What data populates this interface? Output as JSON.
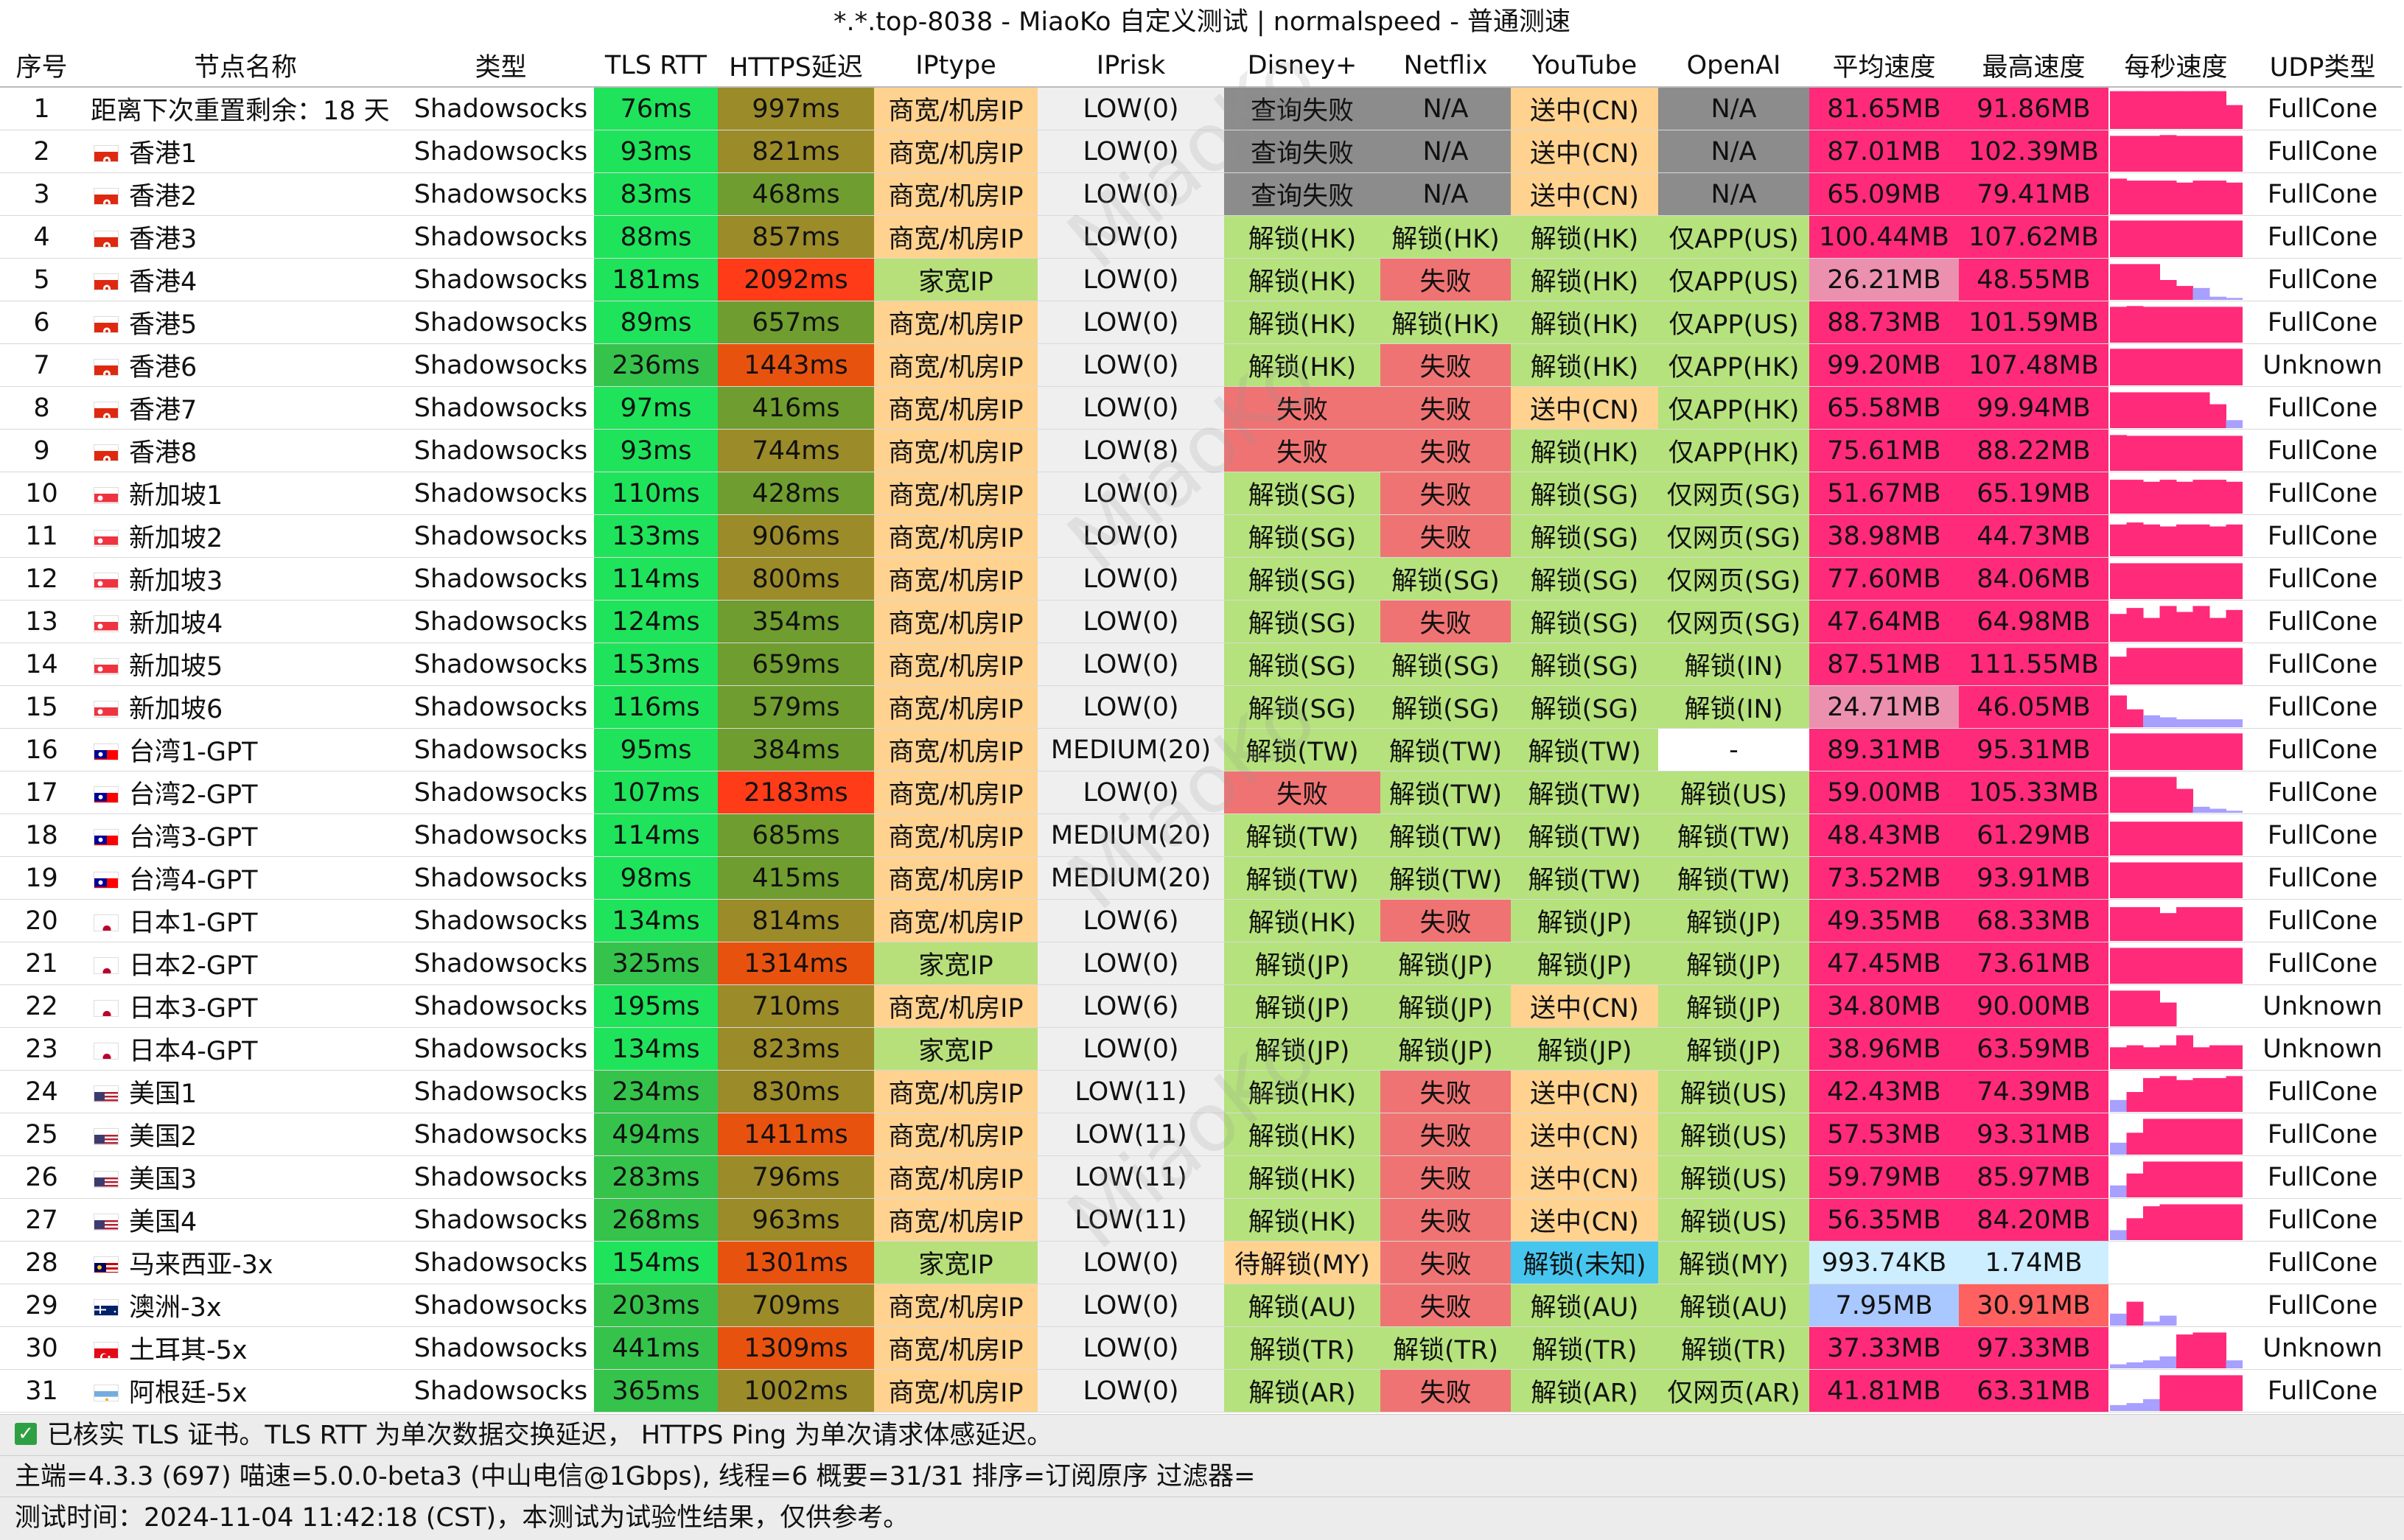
{
  "title": "*.*.top-8038 - MiaoKo 自定义测试 | normalspeed - 普通测速",
  "watermark": "MiaoKo",
  "headers": [
    "序号",
    "节点名称",
    "类型",
    "TLS RTT",
    "HTTPS延迟",
    "IPtype",
    "IPrisk",
    "Disney+",
    "Netflix",
    "YouTube",
    "OpenAI",
    "平均速度",
    "最高速度",
    "每秒速度",
    "UDP类型"
  ],
  "colors": {
    "rtt_green": "#1fe35a",
    "rtt_mid": "#35c34b",
    "https_olive": "#9b8b29",
    "https_mid": "#6f9d2f",
    "https_red": "#ff3b18",
    "https_orange": "#e8520f",
    "iptype_dc": "#ffd28f",
    "iptype_home": "#b8e07a",
    "iprisk_bg": "#efefef",
    "unlock": "#b5e27c",
    "fail": "#f07373",
    "query_fail": "#8c8c8c",
    "sent_cn": "#ffd28f",
    "waiting": "#ffd28f",
    "unknown_unlock": "#46c6ef",
    "speed_pink": "#ff2a79",
    "speed_light_pink": "#ec90b0",
    "speed_light_blue": "#cdeeff",
    "speed_blue": "#a9c8ff",
    "speed_red": "#ff6060",
    "spark_pink": "#ff2a79",
    "spark_blue": "#a7a0ff",
    "blank": "#ffffff"
  },
  "rows": [
    {
      "no": "1",
      "flag": "",
      "name": "距离下次重置剩余：18 天",
      "type": "Shadowsocks",
      "rtt": "76ms",
      "https": "997ms",
      "iptype": "商宽/机房IP",
      "iprisk": "LOW(0)",
      "disney": "查询失败",
      "netflix": "N/A",
      "youtube": "送中(CN)",
      "openai": "N/A",
      "avg": "81.65MB",
      "max": "91.86MB",
      "udp": "FullCone",
      "spark": [
        0.95,
        0.95,
        0.95,
        0.95,
        0.95,
        0.95,
        0.95,
        0.6
      ]
    },
    {
      "no": "2",
      "flag": "hk",
      "name": "香港1",
      "type": "Shadowsocks",
      "rtt": "93ms",
      "https": "821ms",
      "iptype": "商宽/机房IP",
      "iprisk": "LOW(0)",
      "disney": "查询失败",
      "netflix": "N/A",
      "youtube": "送中(CN)",
      "openai": "N/A",
      "avg": "87.01MB",
      "max": "102.39MB",
      "udp": "FullCone",
      "spark": [
        0.9,
        0.9,
        0.9,
        0.92,
        0.9,
        0.9,
        0.9,
        0.9
      ]
    },
    {
      "no": "3",
      "flag": "hk",
      "name": "香港2",
      "type": "Shadowsocks",
      "rtt": "83ms",
      "https": "468ms",
      "iptype": "商宽/机房IP",
      "iprisk": "LOW(0)",
      "disney": "查询失败",
      "netflix": "N/A",
      "youtube": "送中(CN)",
      "openai": "N/A",
      "avg": "65.09MB",
      "max": "79.41MB",
      "udp": "FullCone",
      "spark": [
        0.9,
        0.85,
        0.85,
        0.85,
        0.8,
        0.85,
        0.85,
        0.8
      ]
    },
    {
      "no": "4",
      "flag": "hk",
      "name": "香港3",
      "type": "Shadowsocks",
      "rtt": "88ms",
      "https": "857ms",
      "iptype": "商宽/机房IP",
      "iprisk": "LOW(0)",
      "disney": "解锁(HK)",
      "netflix": "解锁(HK)",
      "youtube": "解锁(HK)",
      "openai": "仅APP(US)",
      "avg": "100.44MB",
      "max": "107.62MB",
      "udp": "FullCone",
      "spark": [
        0.92,
        0.92,
        0.92,
        0.92,
        0.92,
        0.92,
        0.92,
        0.92
      ]
    },
    {
      "no": "5",
      "flag": "hk",
      "name": "香港4",
      "type": "Shadowsocks",
      "rtt": "181ms",
      "https": "2092ms",
      "iptype": "家宽IP",
      "iprisk": "LOW(0)",
      "disney": "解锁(HK)",
      "netflix": "失败",
      "youtube": "解锁(HK)",
      "openai": "仅APP(US)",
      "avg": "26.21MB",
      "max": "48.55MB",
      "udp": "FullCone",
      "spark": [
        0.9,
        0.9,
        0.9,
        0.5,
        0.35,
        0.3,
        0.08,
        0.05
      ]
    },
    {
      "no": "6",
      "flag": "hk",
      "name": "香港5",
      "type": "Shadowsocks",
      "rtt": "89ms",
      "https": "657ms",
      "iptype": "商宽/机房IP",
      "iprisk": "LOW(0)",
      "disney": "解锁(HK)",
      "netflix": "解锁(HK)",
      "youtube": "解锁(HK)",
      "openai": "仅APP(US)",
      "avg": "88.73MB",
      "max": "101.59MB",
      "udp": "FullCone",
      "spark": [
        0.9,
        0.92,
        0.9,
        0.9,
        0.9,
        0.9,
        0.9,
        0.9
      ]
    },
    {
      "no": "7",
      "flag": "hk",
      "name": "香港6",
      "type": "Shadowsocks",
      "rtt": "236ms",
      "https": "1443ms",
      "iptype": "商宽/机房IP",
      "iprisk": "LOW(0)",
      "disney": "解锁(HK)",
      "netflix": "失败",
      "youtube": "解锁(HK)",
      "openai": "仅APP(HK)",
      "avg": "99.20MB",
      "max": "107.48MB",
      "udp": "Unknown",
      "spark": [
        0.92,
        0.92,
        0.92,
        0.92,
        0.92,
        0.92,
        0.92,
        0.92
      ]
    },
    {
      "no": "8",
      "flag": "hk",
      "name": "香港7",
      "type": "Shadowsocks",
      "rtt": "97ms",
      "https": "416ms",
      "iptype": "商宽/机房IP",
      "iprisk": "LOW(0)",
      "disney": "失败",
      "netflix": "失败",
      "youtube": "送中(CN)",
      "openai": "仅APP(HK)",
      "avg": "65.58MB",
      "max": "99.94MB",
      "udp": "FullCone",
      "spark": [
        0.9,
        0.9,
        0.9,
        0.9,
        0.9,
        0.9,
        0.6,
        0.2
      ]
    },
    {
      "no": "9",
      "flag": "hk",
      "name": "香港8",
      "type": "Shadowsocks",
      "rtt": "93ms",
      "https": "744ms",
      "iptype": "商宽/机房IP",
      "iprisk": "LOW(8)",
      "disney": "失败",
      "netflix": "失败",
      "youtube": "解锁(HK)",
      "openai": "仅APP(HK)",
      "avg": "75.61MB",
      "max": "88.22MB",
      "udp": "FullCone",
      "spark": [
        0.9,
        0.88,
        0.88,
        0.88,
        0.88,
        0.88,
        0.88,
        0.88
      ]
    },
    {
      "no": "10",
      "flag": "sg",
      "name": "新加坡1",
      "type": "Shadowsocks",
      "rtt": "110ms",
      "https": "428ms",
      "iptype": "商宽/机房IP",
      "iprisk": "LOW(0)",
      "disney": "解锁(SG)",
      "netflix": "失败",
      "youtube": "解锁(SG)",
      "openai": "仅网页(SG)",
      "avg": "51.67MB",
      "max": "65.19MB",
      "udp": "FullCone",
      "spark": [
        0.85,
        0.85,
        0.8,
        0.85,
        0.8,
        0.85,
        0.85,
        0.8
      ]
    },
    {
      "no": "11",
      "flag": "sg",
      "name": "新加坡2",
      "type": "Shadowsocks",
      "rtt": "133ms",
      "https": "906ms",
      "iptype": "商宽/机房IP",
      "iprisk": "LOW(0)",
      "disney": "解锁(SG)",
      "netflix": "失败",
      "youtube": "解锁(SG)",
      "openai": "仅网页(SG)",
      "avg": "38.98MB",
      "max": "44.73MB",
      "udp": "FullCone",
      "spark": [
        0.8,
        0.85,
        0.8,
        0.75,
        0.8,
        0.8,
        0.75,
        0.8
      ]
    },
    {
      "no": "12",
      "flag": "sg",
      "name": "新加坡3",
      "type": "Shadowsocks",
      "rtt": "114ms",
      "https": "800ms",
      "iptype": "商宽/机房IP",
      "iprisk": "LOW(0)",
      "disney": "解锁(SG)",
      "netflix": "解锁(SG)",
      "youtube": "解锁(SG)",
      "openai": "仅网页(SG)",
      "avg": "77.60MB",
      "max": "84.06MB",
      "udp": "FullCone",
      "spark": [
        0.9,
        0.9,
        0.9,
        0.9,
        0.9,
        0.9,
        0.9,
        0.9
      ]
    },
    {
      "no": "13",
      "flag": "sg",
      "name": "新加坡4",
      "type": "Shadowsocks",
      "rtt": "124ms",
      "https": "354ms",
      "iptype": "商宽/机房IP",
      "iprisk": "LOW(0)",
      "disney": "解锁(SG)",
      "netflix": "失败",
      "youtube": "解锁(SG)",
      "openai": "仅网页(SG)",
      "avg": "47.64MB",
      "max": "64.98MB",
      "udp": "FullCone",
      "spark": [
        0.7,
        0.85,
        0.6,
        0.9,
        0.75,
        0.9,
        0.6,
        0.8
      ]
    },
    {
      "no": "14",
      "flag": "sg",
      "name": "新加坡5",
      "type": "Shadowsocks",
      "rtt": "153ms",
      "https": "659ms",
      "iptype": "商宽/机房IP",
      "iprisk": "LOW(0)",
      "disney": "解锁(SG)",
      "netflix": "解锁(SG)",
      "youtube": "解锁(SG)",
      "openai": "解锁(IN)",
      "avg": "87.51MB",
      "max": "111.55MB",
      "udp": "FullCone",
      "spark": [
        0.7,
        0.92,
        0.92,
        0.92,
        0.92,
        0.92,
        0.92,
        0.92
      ]
    },
    {
      "no": "15",
      "flag": "sg",
      "name": "新加坡6",
      "type": "Shadowsocks",
      "rtt": "116ms",
      "https": "579ms",
      "iptype": "商宽/机房IP",
      "iprisk": "LOW(0)",
      "disney": "解锁(SG)",
      "netflix": "解锁(SG)",
      "youtube": "解锁(SG)",
      "openai": "解锁(IN)",
      "avg": "24.71MB",
      "max": "46.05MB",
      "udp": "FullCone",
      "spark": [
        0.8,
        0.45,
        0.3,
        0.25,
        0.2,
        0.2,
        0.2,
        0.2
      ]
    },
    {
      "no": "16",
      "flag": "tw",
      "name": "台湾1-GPT",
      "type": "Shadowsocks",
      "rtt": "95ms",
      "https": "384ms",
      "iptype": "商宽/机房IP",
      "iprisk": "MEDIUM(20)",
      "disney": "解锁(TW)",
      "netflix": "解锁(TW)",
      "youtube": "解锁(TW)",
      "openai": "-",
      "avg": "89.31MB",
      "max": "95.31MB",
      "udp": "FullCone",
      "spark": [
        0.92,
        0.92,
        0.92,
        0.92,
        0.92,
        0.92,
        0.92,
        0.92
      ]
    },
    {
      "no": "17",
      "flag": "tw",
      "name": "台湾2-GPT",
      "type": "Shadowsocks",
      "rtt": "107ms",
      "https": "2183ms",
      "iptype": "商宽/机房IP",
      "iprisk": "LOW(0)",
      "disney": "失败",
      "netflix": "解锁(TW)",
      "youtube": "解锁(TW)",
      "openai": "解锁(US)",
      "avg": "59.00MB",
      "max": "105.33MB",
      "udp": "FullCone",
      "spark": [
        0.9,
        0.9,
        0.9,
        0.9,
        0.6,
        0.15,
        0.1,
        0.05
      ]
    },
    {
      "no": "18",
      "flag": "tw",
      "name": "台湾3-GPT",
      "type": "Shadowsocks",
      "rtt": "114ms",
      "https": "685ms",
      "iptype": "商宽/机房IP",
      "iprisk": "MEDIUM(20)",
      "disney": "解锁(TW)",
      "netflix": "解锁(TW)",
      "youtube": "解锁(TW)",
      "openai": "解锁(TW)",
      "avg": "48.43MB",
      "max": "61.29MB",
      "udp": "FullCone",
      "spark": [
        0.85,
        0.85,
        0.85,
        0.85,
        0.85,
        0.85,
        0.85,
        0.85
      ]
    },
    {
      "no": "19",
      "flag": "tw",
      "name": "台湾4-GPT",
      "type": "Shadowsocks",
      "rtt": "98ms",
      "https": "415ms",
      "iptype": "商宽/机房IP",
      "iprisk": "MEDIUM(20)",
      "disney": "解锁(TW)",
      "netflix": "解锁(TW)",
      "youtube": "解锁(TW)",
      "openai": "解锁(TW)",
      "avg": "73.52MB",
      "max": "93.91MB",
      "udp": "FullCone",
      "spark": [
        0.9,
        0.9,
        0.9,
        0.9,
        0.9,
        0.9,
        0.9,
        0.9
      ]
    },
    {
      "no": "20",
      "flag": "jp",
      "name": "日本1-GPT",
      "type": "Shadowsocks",
      "rtt": "134ms",
      "https": "814ms",
      "iptype": "商宽/机房IP",
      "iprisk": "LOW(6)",
      "disney": "解锁(HK)",
      "netflix": "失败",
      "youtube": "解锁(JP)",
      "openai": "解锁(JP)",
      "avg": "49.35MB",
      "max": "68.33MB",
      "udp": "FullCone",
      "spark": [
        0.85,
        0.85,
        0.85,
        0.7,
        0.85,
        0.85,
        0.85,
        0.85
      ]
    },
    {
      "no": "21",
      "flag": "jp",
      "name": "日本2-GPT",
      "type": "Shadowsocks",
      "rtt": "325ms",
      "https": "1314ms",
      "iptype": "家宽IP",
      "iprisk": "LOW(0)",
      "disney": "解锁(JP)",
      "netflix": "解锁(JP)",
      "youtube": "解锁(JP)",
      "openai": "解锁(JP)",
      "avg": "47.45MB",
      "max": "73.61MB",
      "udp": "FullCone",
      "spark": [
        0.9,
        0.9,
        0.9,
        0.9,
        0.9,
        0.9,
        0.9,
        0.9
      ]
    },
    {
      "no": "22",
      "flag": "jp",
      "name": "日本3-GPT",
      "type": "Shadowsocks",
      "rtt": "195ms",
      "https": "710ms",
      "iptype": "商宽/机房IP",
      "iprisk": "LOW(6)",
      "disney": "解锁(JP)",
      "netflix": "解锁(JP)",
      "youtube": "送中(CN)",
      "openai": "解锁(JP)",
      "avg": "34.80MB",
      "max": "90.00MB",
      "udp": "Unknown",
      "spark": [
        0.9,
        0.9,
        0.9,
        0.6,
        0.0,
        0.0,
        0.0,
        0.0
      ]
    },
    {
      "no": "23",
      "flag": "jp",
      "name": "日本4-GPT",
      "type": "Shadowsocks",
      "rtt": "134ms",
      "https": "823ms",
      "iptype": "家宽IP",
      "iprisk": "LOW(0)",
      "disney": "解锁(JP)",
      "netflix": "解锁(JP)",
      "youtube": "解锁(JP)",
      "openai": "解锁(JP)",
      "avg": "38.96MB",
      "max": "63.59MB",
      "udp": "Unknown",
      "spark": [
        0.55,
        0.6,
        0.55,
        0.6,
        0.85,
        0.55,
        0.6,
        0.6
      ]
    },
    {
      "no": "24",
      "flag": "us",
      "name": "美国1",
      "type": "Shadowsocks",
      "rtt": "234ms",
      "https": "830ms",
      "iptype": "商宽/机房IP",
      "iprisk": "LOW(11)",
      "disney": "解锁(HK)",
      "netflix": "失败",
      "youtube": "送中(CN)",
      "openai": "解锁(US)",
      "avg": "42.43MB",
      "max": "74.39MB",
      "udp": "FullCone",
      "spark": [
        0.3,
        0.5,
        0.85,
        0.9,
        0.8,
        0.85,
        0.85,
        0.9
      ]
    },
    {
      "no": "25",
      "flag": "us",
      "name": "美国2",
      "type": "Shadowsocks",
      "rtt": "494ms",
      "https": "1411ms",
      "iptype": "商宽/机房IP",
      "iprisk": "LOW(11)",
      "disney": "解锁(HK)",
      "netflix": "失败",
      "youtube": "送中(CN)",
      "openai": "解锁(US)",
      "avg": "57.53MB",
      "max": "93.31MB",
      "udp": "FullCone",
      "spark": [
        0.3,
        0.55,
        0.9,
        0.9,
        0.9,
        0.9,
        0.9,
        0.9
      ]
    },
    {
      "no": "26",
      "flag": "us",
      "name": "美国3",
      "type": "Shadowsocks",
      "rtt": "283ms",
      "https": "796ms",
      "iptype": "商宽/机房IP",
      "iprisk": "LOW(11)",
      "disney": "解锁(HK)",
      "netflix": "失败",
      "youtube": "送中(CN)",
      "openai": "解锁(US)",
      "avg": "59.79MB",
      "max": "85.97MB",
      "udp": "FullCone",
      "spark": [
        0.3,
        0.6,
        0.9,
        0.9,
        0.9,
        0.9,
        0.9,
        0.9
      ]
    },
    {
      "no": "27",
      "flag": "us",
      "name": "美国4",
      "type": "Shadowsocks",
      "rtt": "268ms",
      "https": "963ms",
      "iptype": "商宽/机房IP",
      "iprisk": "LOW(11)",
      "disney": "解锁(HK)",
      "netflix": "失败",
      "youtube": "送中(CN)",
      "openai": "解锁(US)",
      "avg": "56.35MB",
      "max": "84.20MB",
      "udp": "FullCone",
      "spark": [
        0.25,
        0.55,
        0.85,
        0.9,
        0.9,
        0.9,
        0.9,
        0.9
      ]
    },
    {
      "no": "28",
      "flag": "my",
      "name": "马来西亚-3x",
      "type": "Shadowsocks",
      "rtt": "154ms",
      "https": "1301ms",
      "iptype": "家宽IP",
      "iprisk": "LOW(0)",
      "disney": "待解锁(MY)",
      "netflix": "失败",
      "youtube": "解锁(未知)",
      "openai": "解锁(MY)",
      "avg": "993.74KB",
      "max": "1.74MB",
      "udp": "FullCone",
      "spark": [
        0,
        0,
        0,
        0,
        0,
        0,
        0,
        0
      ]
    },
    {
      "no": "29",
      "flag": "au",
      "name": "澳洲-3x",
      "type": "Shadowsocks",
      "rtt": "203ms",
      "https": "709ms",
      "iptype": "商宽/机房IP",
      "iprisk": "LOW(0)",
      "disney": "解锁(AU)",
      "netflix": "失败",
      "youtube": "解锁(AU)",
      "openai": "解锁(AU)",
      "avg": "7.95MB",
      "max": "30.91MB",
      "udp": "FullCone",
      "spark": [
        0.3,
        0.6,
        0.1,
        0.25,
        0,
        0,
        0,
        0
      ]
    },
    {
      "no": "30",
      "flag": "tr",
      "name": "土耳其-5x",
      "type": "Shadowsocks",
      "rtt": "441ms",
      "https": "1309ms",
      "iptype": "商宽/机房IP",
      "iprisk": "LOW(0)",
      "disney": "解锁(TR)",
      "netflix": "解锁(TR)",
      "youtube": "解锁(TR)",
      "openai": "解锁(TR)",
      "avg": "37.33MB",
      "max": "97.33MB",
      "udp": "Unknown",
      "spark": [
        0.1,
        0.15,
        0.2,
        0.3,
        0.85,
        0.9,
        0.9,
        0.2
      ]
    },
    {
      "no": "31",
      "flag": "ar",
      "name": "阿根廷-5x",
      "type": "Shadowsocks",
      "rtt": "365ms",
      "https": "1002ms",
      "iptype": "商宽/机房IP",
      "iprisk": "LOW(0)",
      "disney": "解锁(AR)",
      "netflix": "失败",
      "youtube": "解锁(AR)",
      "openai": "仅网页(AR)",
      "avg": "41.81MB",
      "max": "63.31MB",
      "udp": "FullCone",
      "spark": [
        0.15,
        0.2,
        0.3,
        0.9,
        0.9,
        0.9,
        0.9,
        0.9
      ]
    }
  ],
  "footer": {
    "line1": "已核实 TLS 证书。TLS RTT 为单次数据交换延迟， HTTPS Ping 为单次请求体感延迟。",
    "line2": "主端=4.3.3 (697) 喵速=5.0.0-beta3 (中山电信@1Gbps), 线程=6 概要=31/31 排序=订阅原序 过滤器=",
    "line3": "测试时间：2024-11-04 11:42:18 (CST)，本测试为试验性结果，仅供参考。"
  }
}
